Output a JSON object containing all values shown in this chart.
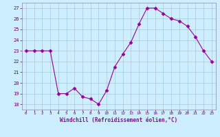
{
  "x": [
    0,
    1,
    2,
    3,
    4,
    5,
    6,
    7,
    8,
    9,
    10,
    11,
    12,
    13,
    14,
    15,
    16,
    17,
    18,
    19,
    20,
    21,
    22,
    23
  ],
  "y": [
    23,
    23,
    23,
    23,
    19,
    19,
    19.5,
    18.7,
    18.5,
    18,
    19.3,
    21.5,
    22.7,
    23.8,
    25.5,
    27,
    27,
    26.5,
    26,
    25.8,
    25.3,
    24.3,
    23,
    22
  ],
  "line_color": "#990099",
  "marker": "D",
  "marker_size": 2.5,
  "bg_color": "#cceeff",
  "grid_color": "#aabbcc",
  "xlabel": "Windchill (Refroidissement éolien,°C)",
  "xlabel_color": "#990099",
  "ylabel_ticks": [
    18,
    19,
    20,
    21,
    22,
    23,
    24,
    25,
    26,
    27
  ],
  "xtick_labels": [
    "0",
    "1",
    "2",
    "3",
    "4",
    "5",
    "6",
    "7",
    "8",
    "9",
    "10",
    "11",
    "12",
    "13",
    "14",
    "15",
    "16",
    "17",
    "18",
    "19",
    "20",
    "21",
    "22",
    "23"
  ],
  "ylim": [
    17.5,
    27.5
  ],
  "xlim": [
    -0.5,
    23.5
  ],
  "tick_color": "#660066",
  "spine_color": "#8888aa"
}
